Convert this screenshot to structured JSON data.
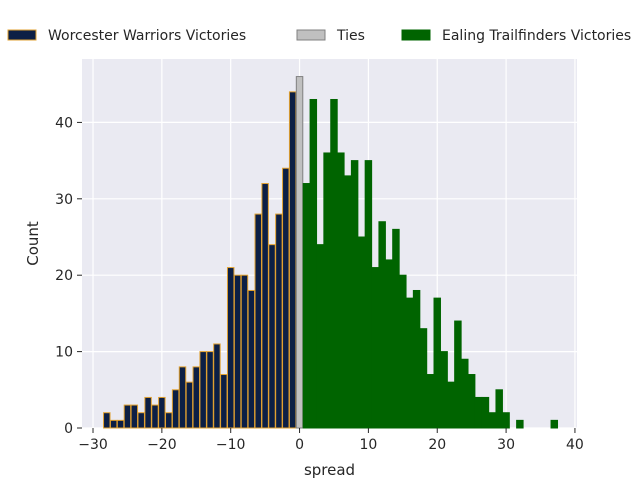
{
  "chart_data": {
    "type": "bar",
    "title": "",
    "xlabel": "spread",
    "ylabel": "Count",
    "xlim": [
      -31.6,
      40.3
    ],
    "ylim": [
      0,
      48.3
    ],
    "xticks": [
      -30,
      -20,
      -10,
      0,
      10,
      20,
      30,
      40
    ],
    "yticks": [
      0,
      10,
      20,
      30,
      40
    ],
    "grid": true,
    "legend_position": "top",
    "series": [
      {
        "name": "Worcester Warriors Victories",
        "color": "#0c1f45",
        "edge_color": "#e0a030",
        "x": [
          -28,
          -27,
          -26,
          -25,
          -24,
          -23,
          -22,
          -21,
          -20,
          -19,
          -18,
          -17,
          -16,
          -15,
          -14,
          -13,
          -12,
          -11,
          -10,
          -9,
          -8,
          -7,
          -6,
          -5,
          -4,
          -3,
          -2,
          -1
        ],
        "values": [
          2,
          1,
          1,
          3,
          3,
          2,
          4,
          3,
          4,
          2,
          5,
          8,
          6,
          8,
          10,
          10,
          11,
          7,
          21,
          20,
          20,
          18,
          28,
          32,
          24,
          28,
          34,
          44
        ]
      },
      {
        "name": "Ties",
        "color": "#c0c0c0",
        "edge_color": "#808080",
        "x": [
          0
        ],
        "values": [
          46
        ]
      },
      {
        "name": "Ealing Trailfinders Victories",
        "color": "#006400",
        "edge_color": "#006400",
        "x": [
          1,
          2,
          3,
          4,
          5,
          6,
          7,
          8,
          9,
          10,
          11,
          12,
          13,
          14,
          15,
          16,
          17,
          18,
          19,
          20,
          21,
          22,
          23,
          24,
          25,
          26,
          27,
          28,
          29,
          30,
          32,
          37
        ],
        "values": [
          32,
          43,
          24,
          36,
          43,
          36,
          33,
          35,
          25,
          35,
          21,
          27,
          22,
          26,
          20,
          17,
          18,
          13,
          7,
          17,
          10,
          6,
          14,
          9,
          7,
          4,
          4,
          2,
          5,
          2,
          1,
          1
        ]
      }
    ]
  }
}
